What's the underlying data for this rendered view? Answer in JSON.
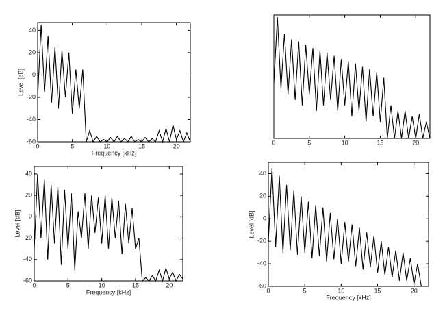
{
  "chart_data": [
    {
      "type": "line",
      "xlabel": "Frequency [kHz]",
      "ylabel": "Level [dB]",
      "x": [
        0,
        0.5,
        1,
        1.5,
        2,
        2.5,
        3,
        3.5,
        4,
        4.5,
        5,
        5.5,
        6,
        6.5,
        7,
        7.5,
        8,
        8.5,
        9,
        9.5,
        10,
        10.5,
        11,
        11.5,
        12,
        12.5,
        13,
        13.5,
        14,
        14.5,
        15,
        15.5,
        16,
        16.5,
        17,
        17.5,
        18,
        18.5,
        19,
        19.5,
        20,
        20.5,
        21,
        21.5,
        22
      ],
      "series": [
        {
          "color": "#000000",
          "values": [
            -20,
            45,
            -15,
            35,
            -25,
            25,
            -30,
            22,
            -20,
            20,
            -35,
            5,
            -30,
            5,
            -60,
            -50,
            -60,
            -55,
            -60,
            -58,
            -60,
            -56,
            -60,
            -55,
            -60,
            -57,
            -60,
            -55,
            -60,
            -58,
            -60,
            -56,
            -60,
            -57,
            -60,
            -50,
            -60,
            -48,
            -60,
            -45,
            -58,
            -50,
            -60,
            -52,
            -60
          ]
        }
      ],
      "xlim": [
        0,
        22
      ],
      "ylim": [
        -60,
        47
      ],
      "xticks": [
        0,
        5,
        10,
        15,
        20
      ],
      "yticks": [
        -60,
        -40,
        -20,
        0,
        20,
        40
      ]
    },
    {
      "type": "line",
      "x": [
        0,
        0.5,
        1,
        1.5,
        2,
        2.5,
        3,
        3.5,
        4,
        4.5,
        5,
        5.5,
        6,
        6.5,
        7,
        7.5,
        8,
        8.5,
        9,
        9.5,
        10,
        10.5,
        11,
        11.5,
        12,
        12.5,
        13,
        13.5,
        14,
        14.5,
        15,
        15.5,
        16,
        16.5,
        17,
        17.5,
        18,
        18.5,
        19,
        19.5,
        20,
        20.5,
        21,
        21.5,
        22
      ],
      "series": [
        {
          "color": "#000000",
          "values": [
            -10,
            50,
            -15,
            35,
            -20,
            30,
            -25,
            28,
            -30,
            25,
            -20,
            22,
            -35,
            20,
            -30,
            18,
            -25,
            15,
            -35,
            12,
            -30,
            10,
            -40,
            8,
            -35,
            5,
            -45,
            3,
            -40,
            0,
            -45,
            -5,
            -60,
            -30,
            -60,
            -35,
            -60,
            -35,
            -60,
            -40,
            -60,
            -38,
            -60,
            -45,
            -60
          ]
        }
      ],
      "xlim": [
        0,
        22
      ],
      "ylim": [
        -60,
        52
      ],
      "xticks": [
        0,
        5,
        10,
        15,
        20
      ]
    },
    {
      "type": "line",
      "xlabel": "Frequency [kHz]",
      "ylabel": "Level [dB]",
      "x": [
        0,
        0.5,
        1,
        1.5,
        2,
        2.5,
        3,
        3.5,
        4,
        4.5,
        5,
        5.5,
        6,
        6.5,
        7,
        7.5,
        8,
        8.5,
        9,
        9.5,
        10,
        10.5,
        11,
        11.5,
        12,
        12.5,
        13,
        13.5,
        14,
        14.5,
        15,
        15.5,
        16,
        16.5,
        17,
        17.5,
        18,
        18.5,
        19,
        19.5,
        20,
        20.5,
        21,
        21.5,
        22
      ],
      "series": [
        {
          "color": "#000000",
          "values": [
            -30,
            40,
            -20,
            35,
            -40,
            30,
            -25,
            28,
            -45,
            25,
            -30,
            22,
            -50,
            5,
            -20,
            22,
            -30,
            20,
            -15,
            18,
            -25,
            20,
            -30,
            18,
            -20,
            15,
            -35,
            12,
            -25,
            8,
            -30,
            -20,
            -60,
            -57,
            -60,
            -55,
            -60,
            -50,
            -60,
            -48,
            -58,
            -52,
            -60,
            -54,
            -58
          ]
        }
      ],
      "xlim": [
        0,
        22
      ],
      "ylim": [
        -60,
        47
      ],
      "xticks": [
        0,
        5,
        10,
        15,
        20
      ],
      "yticks": [
        -60,
        -40,
        -20,
        0,
        20,
        40
      ]
    },
    {
      "type": "line",
      "xlabel": "Frequency [kHz]",
      "ylabel": "Level [dB]",
      "x": [
        0,
        0.5,
        1,
        1.5,
        2,
        2.5,
        3,
        3.5,
        4,
        4.5,
        5,
        5.5,
        6,
        6.5,
        7,
        7.5,
        8,
        8.5,
        9,
        9.5,
        10,
        10.5,
        11,
        11.5,
        12,
        12.5,
        13,
        13.5,
        14,
        14.5,
        15,
        15.5,
        16,
        16.5,
        17,
        17.5,
        18,
        18.5,
        19,
        19.5,
        20,
        20.5,
        21,
        21.5,
        22
      ],
      "series": [
        {
          "color": "#000000",
          "values": [
            -20,
            45,
            -25,
            38,
            -30,
            30,
            -28,
            25,
            -32,
            20,
            -30,
            15,
            -35,
            12,
            -33,
            10,
            -38,
            5,
            -36,
            0,
            -40,
            -3,
            -38,
            -5,
            -42,
            -8,
            -45,
            -12,
            -43,
            -15,
            -48,
            -20,
            -50,
            -25,
            -52,
            -28,
            -55,
            -30,
            -55,
            -35,
            -58,
            -40,
            -60,
            -60,
            -60
          ]
        }
      ],
      "xlim": [
        0,
        22
      ],
      "ylim": [
        -60,
        50
      ],
      "xticks": [
        0,
        5,
        10,
        15,
        20
      ],
      "yticks": [
        -60,
        -40,
        -20,
        0,
        20,
        40
      ]
    }
  ]
}
